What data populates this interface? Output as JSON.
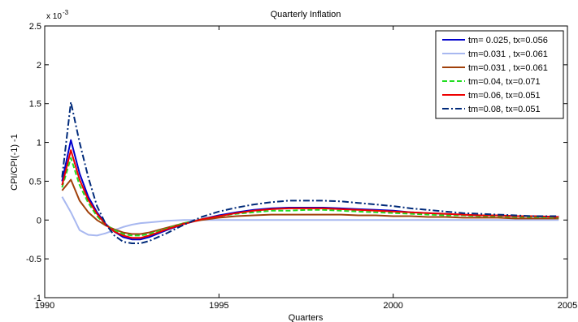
{
  "chart_data": {
    "type": "line",
    "title": "Quarterly Inflation",
    "xlabel": "Quarters",
    "ylabel": "CPI/CPI(-1) -1",
    "y_exponent_label": "x 10",
    "y_exponent": "-3",
    "xlim": [
      1990,
      2005
    ],
    "ylim": [
      -1,
      2.5
    ],
    "x_ticks": [
      1990,
      1995,
      2000,
      2005
    ],
    "y_ticks": [
      -1,
      -0.5,
      0,
      0.5,
      1,
      1.5,
      2,
      2.5
    ],
    "x_tick_labels": [
      "1990",
      "1995",
      "2000",
      "2005"
    ],
    "y_tick_labels": [
      "-1",
      "-0.5",
      "0",
      "0.5",
      "1",
      "1.5",
      "2",
      "2.5"
    ],
    "grid": false,
    "legend_position": "top-right",
    "x": [
      1990.5,
      1990.75,
      1991.0,
      1991.25,
      1991.5,
      1991.75,
      1992.0,
      1992.25,
      1992.5,
      1992.75,
      1993.0,
      1993.5,
      1994.0,
      1994.5,
      1995.0,
      1995.5,
      1996.0,
      1996.5,
      1997.0,
      1997.5,
      1998.0,
      1998.5,
      1999.0,
      1999.5,
      2000.0,
      2000.5,
      2001.0,
      2001.5,
      2002.0,
      2002.5,
      2003.0,
      2003.5,
      2004.0,
      2004.75
    ],
    "series": [
      {
        "name": "tm= 0.025, tx=0.056",
        "color": "#0000cc",
        "dash": "solid",
        "width": 2,
        "values": [
          0.5,
          1.03,
          0.6,
          0.3,
          0.1,
          -0.05,
          -0.15,
          -0.22,
          -0.25,
          -0.25,
          -0.22,
          -0.13,
          -0.05,
          0.01,
          0.06,
          0.1,
          0.13,
          0.15,
          0.16,
          0.16,
          0.16,
          0.15,
          0.14,
          0.13,
          0.12,
          0.1,
          0.09,
          0.08,
          0.07,
          0.06,
          0.06,
          0.05,
          0.05,
          0.04
        ]
      },
      {
        "name": "tm=0.031 , tx=0.061",
        "color": "#a8b8f0",
        "dash": "solid",
        "width": 2,
        "values": [
          0.3,
          0.1,
          -0.13,
          -0.19,
          -0.2,
          -0.17,
          -0.13,
          -0.09,
          -0.06,
          -0.04,
          -0.03,
          -0.01,
          0.0,
          0.0,
          0.0,
          0.0,
          0.0,
          0.0,
          0.0,
          0.0,
          0.0,
          0.0,
          0.0,
          0.0,
          0.0,
          0.0,
          0.0,
          0.0,
          0.0,
          0.0,
          0.0,
          0.0,
          0.0,
          0.0
        ]
      },
      {
        "name": "tm=0.031 , tx=0.061",
        "color": "#a0400a",
        "dash": "solid",
        "width": 2,
        "values": [
          0.38,
          0.52,
          0.25,
          0.1,
          0.0,
          -0.07,
          -0.12,
          -0.16,
          -0.18,
          -0.18,
          -0.16,
          -0.1,
          -0.04,
          0.0,
          0.03,
          0.05,
          0.06,
          0.07,
          0.07,
          0.07,
          0.07,
          0.07,
          0.06,
          0.06,
          0.05,
          0.05,
          0.04,
          0.04,
          0.03,
          0.03,
          0.03,
          0.02,
          0.02,
          0.02
        ]
      },
      {
        "name": "tm=0.04, tx=0.071",
        "color": "#22dd22",
        "dash": "dashed",
        "width": 2,
        "values": [
          0.42,
          0.8,
          0.45,
          0.22,
          0.05,
          -0.06,
          -0.13,
          -0.18,
          -0.2,
          -0.2,
          -0.18,
          -0.11,
          -0.04,
          0.01,
          0.05,
          0.08,
          0.1,
          0.12,
          0.12,
          0.13,
          0.13,
          0.12,
          0.11,
          0.1,
          0.09,
          0.08,
          0.07,
          0.06,
          0.06,
          0.05,
          0.05,
          0.04,
          0.04,
          0.03
        ]
      },
      {
        "name": "tm=0.06, tx=0.051",
        "color": "#ee0000",
        "dash": "solid",
        "width": 2,
        "values": [
          0.45,
          0.9,
          0.52,
          0.26,
          0.08,
          -0.06,
          -0.15,
          -0.2,
          -0.23,
          -0.23,
          -0.2,
          -0.12,
          -0.05,
          0.01,
          0.05,
          0.09,
          0.12,
          0.14,
          0.15,
          0.15,
          0.15,
          0.14,
          0.13,
          0.12,
          0.11,
          0.1,
          0.09,
          0.08,
          0.07,
          0.06,
          0.06,
          0.05,
          0.05,
          0.04
        ]
      },
      {
        "name": "tm=0.08, tx=0.051",
        "color": "#002a7a",
        "dash": "dashdot",
        "width": 2,
        "values": [
          0.55,
          1.52,
          1.0,
          0.55,
          0.18,
          -0.05,
          -0.2,
          -0.28,
          -0.3,
          -0.3,
          -0.27,
          -0.17,
          -0.06,
          0.04,
          0.11,
          0.16,
          0.2,
          0.23,
          0.25,
          0.25,
          0.25,
          0.24,
          0.22,
          0.2,
          0.18,
          0.15,
          0.13,
          0.11,
          0.09,
          0.08,
          0.07,
          0.06,
          0.05,
          0.05
        ]
      }
    ]
  }
}
